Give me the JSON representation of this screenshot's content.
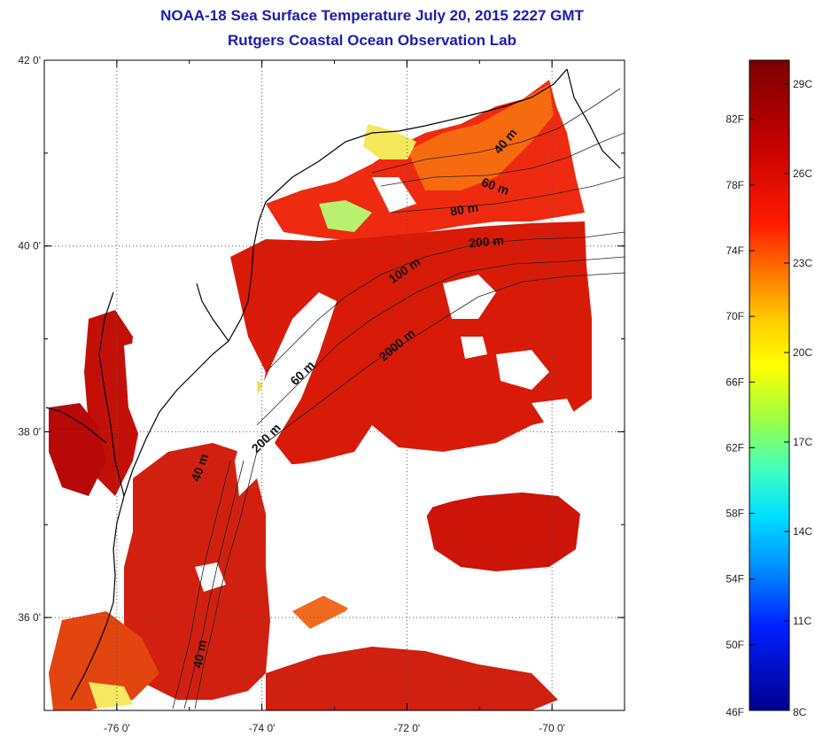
{
  "title": {
    "line1": "NOAA-18 Sea Surface Temperature July 20, 2015 2227 GMT",
    "line2": "Rutgers Coastal Ocean Observation Lab"
  },
  "map": {
    "lon_range": [
      -77.0,
      -69.0
    ],
    "lat_range": [
      35.0,
      42.0
    ],
    "lat_ticks": [
      {
        "value": 42,
        "label": "42 0'"
      },
      {
        "value": 40,
        "label": "40 0'"
      },
      {
        "value": 38,
        "label": "38 0'"
      },
      {
        "value": 36,
        "label": "36 0'"
      }
    ],
    "lon_ticks": [
      {
        "value": -76,
        "label": "-76 0'"
      },
      {
        "value": -74,
        "label": "-74 0'"
      },
      {
        "value": -72,
        "label": "-72 0'"
      },
      {
        "value": -70,
        "label": "-70 0'"
      }
    ],
    "grid": true,
    "depth_labels": [
      {
        "text": "40 m",
        "lon": -70.6,
        "lat": 41.1,
        "angle": -50
      },
      {
        "text": "60 m",
        "lon": -70.8,
        "lat": 40.6,
        "angle": 20
      },
      {
        "text": "80 m",
        "lon": -71.2,
        "lat": 40.35,
        "angle": -10
      },
      {
        "text": "200 m",
        "lon": -70.9,
        "lat": 40.0,
        "angle": -5
      },
      {
        "text": "100 m",
        "lon": -72.0,
        "lat": 39.7,
        "angle": -35
      },
      {
        "text": "2000 m",
        "lon": -72.1,
        "lat": 38.9,
        "angle": -40
      },
      {
        "text": "60 m",
        "lon": -73.4,
        "lat": 38.6,
        "angle": -45
      },
      {
        "text": "200 m",
        "lon": -73.9,
        "lat": 37.9,
        "angle": -45
      },
      {
        "text": "40 m",
        "lon": -74.8,
        "lat": 37.6,
        "angle": -70
      },
      {
        "text": "40 m",
        "lon": -74.8,
        "lat": 35.6,
        "angle": -80
      }
    ]
  },
  "colorbar": {
    "fahrenheit_labels": [
      "82F",
      "78F",
      "74F",
      "70F",
      "66F",
      "62F",
      "58F",
      "54F",
      "50F",
      "46F"
    ],
    "celsius_labels": [
      "29C",
      "26C",
      "23C",
      "20C",
      "17C",
      "14C",
      "11C",
      "8C"
    ],
    "colors": {
      "top": "#800000",
      "upper": "#ff0000",
      "mid_upper": "#ffff00",
      "mid": "#00ffff",
      "low": "#0000ff",
      "bottom": "#00008f"
    }
  },
  "colors": {
    "land": "#ffffff",
    "coast": "#000000",
    "grid": "#555555",
    "title": "#1b1bb0"
  }
}
